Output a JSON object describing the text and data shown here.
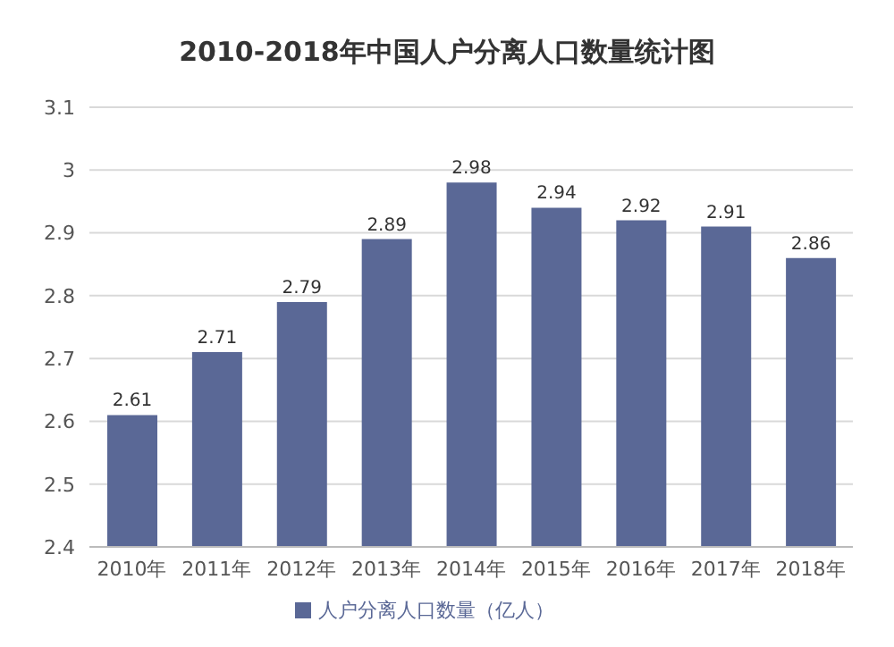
{
  "chart_data": {
    "type": "bar",
    "title": "2010-2018年中国人户分离人口数量统计图",
    "categories": [
      "2010年",
      "2011年",
      "2012年",
      "2013年",
      "2014年",
      "2015年",
      "2016年",
      "2017年",
      "2018年"
    ],
    "series": [
      {
        "name": "人户分离人口数量（亿人）",
        "color": "#5a6896",
        "values": [
          2.61,
          2.71,
          2.79,
          2.89,
          2.98,
          2.94,
          2.92,
          2.91,
          2.86
        ]
      }
    ],
    "ylim": [
      2.4,
      3.1
    ],
    "yticks": [
      2.4,
      2.5,
      2.6,
      2.7,
      2.8,
      2.9,
      3,
      3.1
    ],
    "grid": "y",
    "legend": "bottom",
    "data_labels": true
  }
}
